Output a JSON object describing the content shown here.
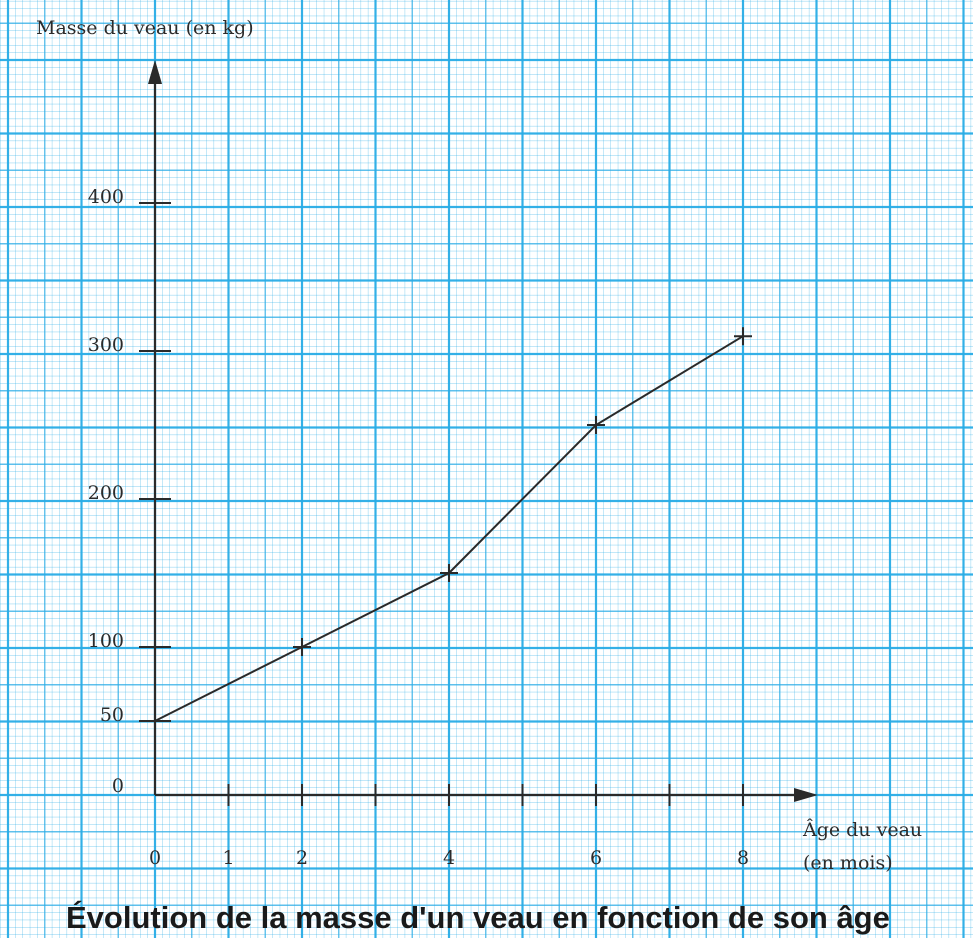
{
  "chart_data": {
    "type": "line",
    "title": "Évolution de la masse d'un veau en fonction de son âge",
    "ylabel": "Masse du veau (en kg)",
    "xlabel_line1": "Âge du veau",
    "xlabel_line2": "(en mois)",
    "x_ticks": [
      0,
      1,
      2,
      3,
      4,
      5,
      6,
      7,
      8
    ],
    "x_tick_labels": [
      "0",
      "1",
      "2",
      "4",
      "6",
      "8"
    ],
    "x_tick_label_values": [
      0,
      1,
      2,
      4,
      6,
      8
    ],
    "y_ticks": [
      0,
      50,
      100,
      200,
      300,
      400
    ],
    "y_tick_labels": [
      "0",
      "50",
      "100",
      "200",
      "300",
      "400"
    ],
    "xlim": [
      0,
      9
    ],
    "ylim": [
      0,
      480
    ],
    "grid": true,
    "colors": {
      "grid": "#29ace6",
      "axis": "#2a2a2a"
    },
    "series": [
      {
        "points": [
          {
            "x": 0,
            "y": 50
          },
          {
            "x": 2,
            "y": 100
          },
          {
            "x": 4,
            "y": 150
          },
          {
            "x": 6,
            "y": 250
          },
          {
            "x": 8,
            "y": 310
          }
        ]
      }
    ]
  }
}
